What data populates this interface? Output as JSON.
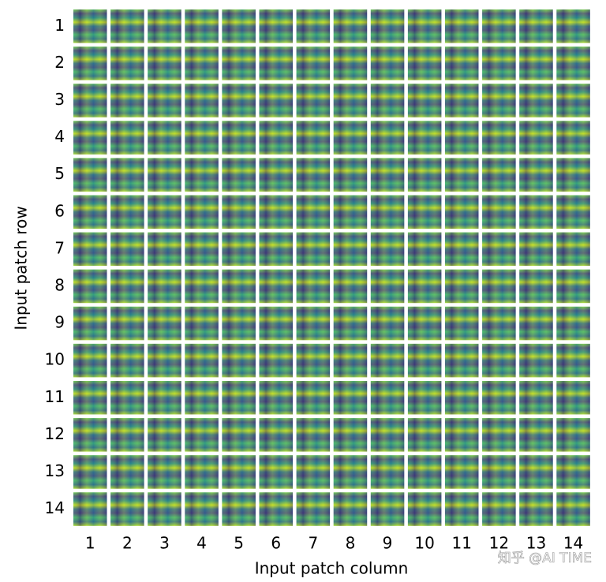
{
  "chart_data": {
    "type": "tile-grid",
    "xlabel": "Input patch column",
    "ylabel": "Input patch row",
    "xticks": [
      1,
      2,
      3,
      4,
      5,
      6,
      7,
      8,
      9,
      10,
      11,
      12,
      13,
      14
    ],
    "yticks": [
      1,
      2,
      3,
      4,
      5,
      6,
      7,
      8,
      9,
      10,
      11,
      12,
      13,
      14
    ]
  },
  "watermark": "知乎 @AI TIME"
}
